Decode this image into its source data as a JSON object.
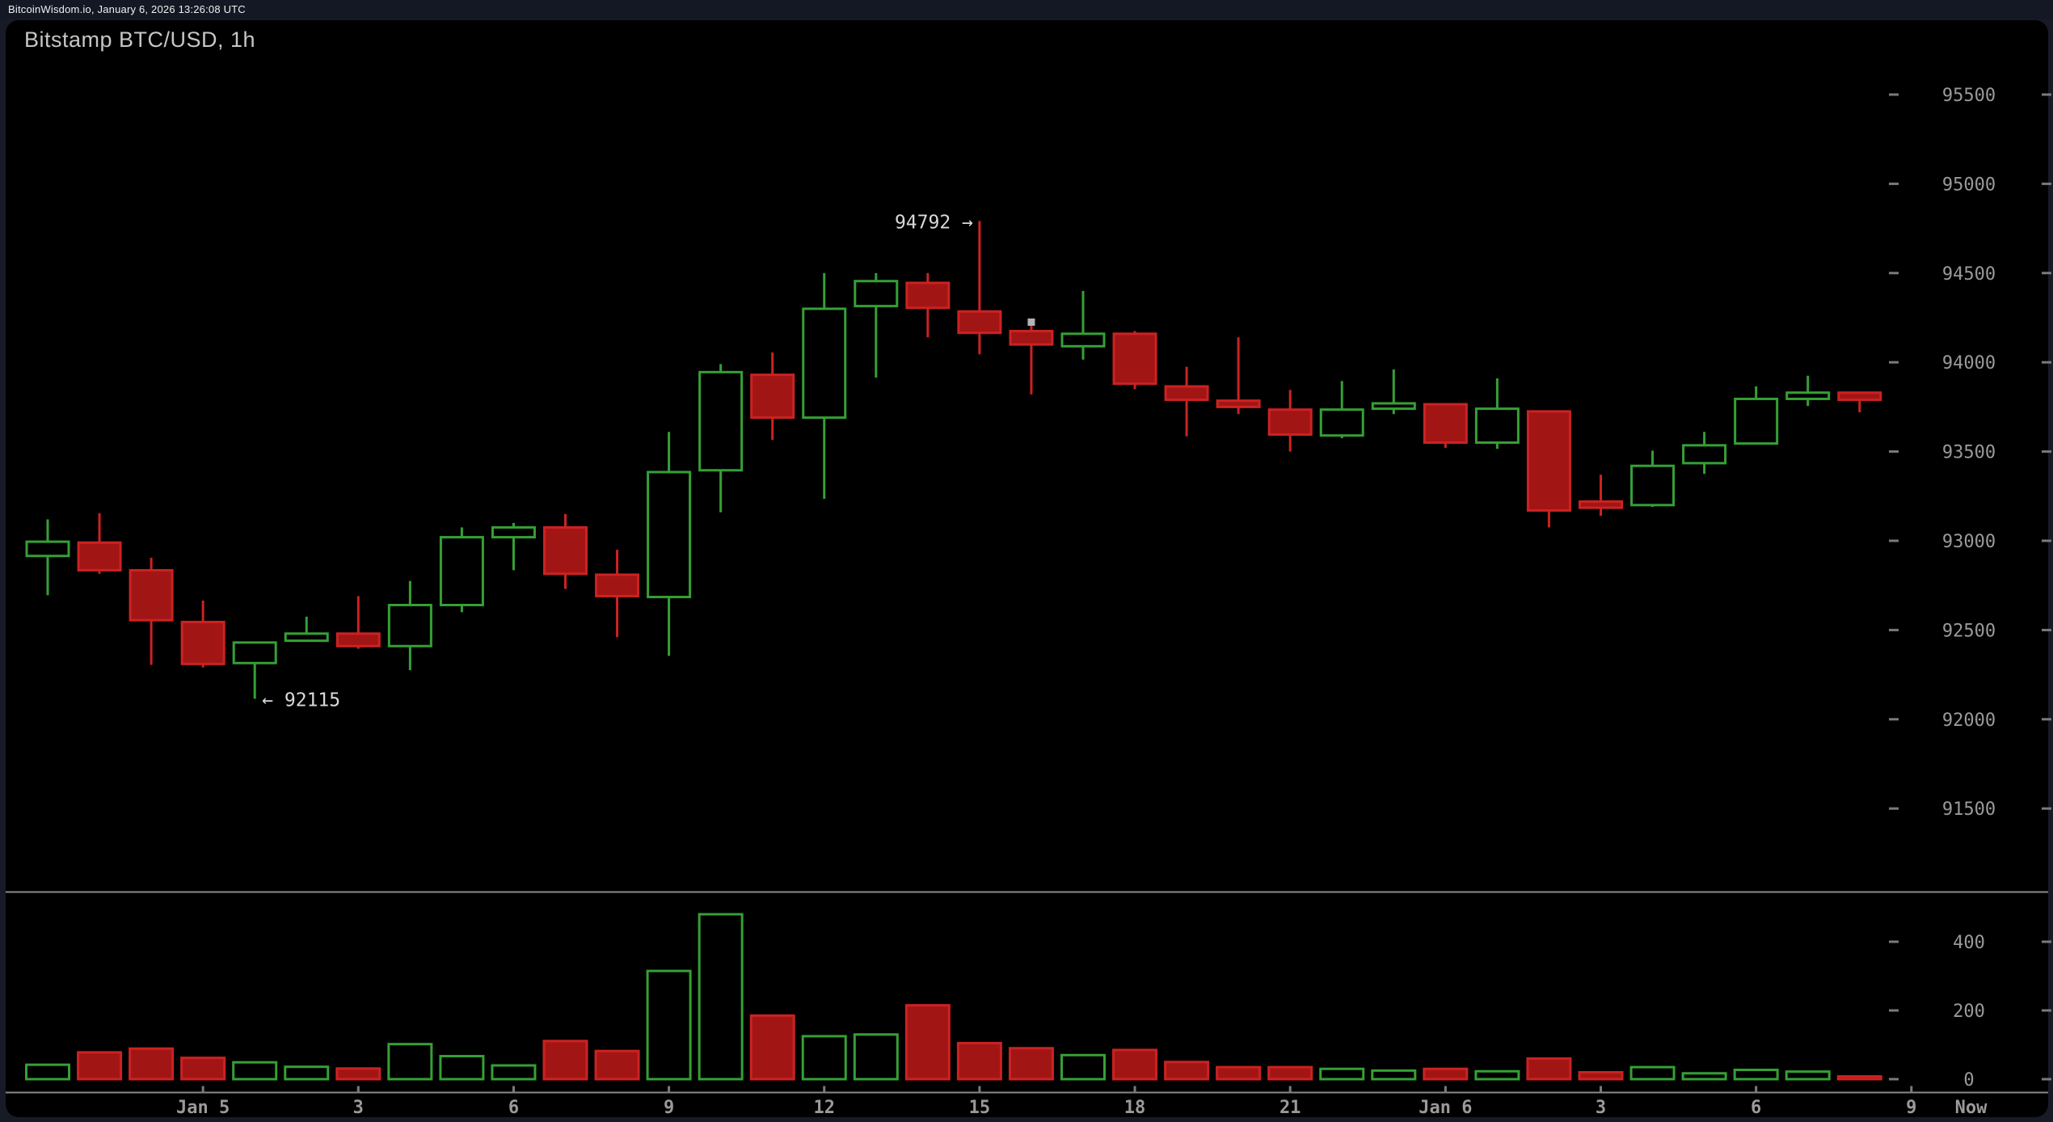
{
  "header": {
    "text": "BitcoinWisdom.io, January 6, 2026 13:26:08 UTC"
  },
  "chart": {
    "title": "Bitstamp BTC/USD, 1h"
  },
  "colors": {
    "up": "#35a035",
    "down_fill": "#a21515",
    "down_stroke": "#cc2222",
    "axis_text": "#9a9a9a",
    "axis_line": "#8a8a8a",
    "tick_dash": "#7a7a7a",
    "annotation_text": "#d9d9d9",
    "marker": "#b3b3b3",
    "page_bg": "#171b26",
    "panel_bg": "#000000",
    "topbar_bg": "#141824",
    "title_text": "#c6c6c6"
  },
  "chart_data": {
    "type": "candlestick",
    "exchange_pair_interval": "Bitstamp BTC/USD, 1h",
    "legend_position": "none",
    "grid": "off",
    "price_axis": {
      "ticks": [
        95500,
        95000,
        94500,
        94000,
        93500,
        93000,
        92500,
        92000,
        91500
      ]
    },
    "volume_axis": {
      "ticks": [
        400,
        200,
        0
      ]
    },
    "time_axis": {
      "labels": [
        {
          "text": "Jan 5",
          "index": 3,
          "tick": true
        },
        {
          "text": "3",
          "index": 6,
          "tick": true
        },
        {
          "text": "6",
          "index": 9,
          "tick": true
        },
        {
          "text": "9",
          "index": 12,
          "tick": true
        },
        {
          "text": "12",
          "index": 15,
          "tick": true
        },
        {
          "text": "15",
          "index": 18,
          "tick": true
        },
        {
          "text": "18",
          "index": 21,
          "tick": true
        },
        {
          "text": "21",
          "index": 24,
          "tick": true
        },
        {
          "text": "Jan 6",
          "index": 27,
          "tick": true
        },
        {
          "text": "3",
          "index": 30,
          "tick": true
        },
        {
          "text": "6",
          "index": 33,
          "tick": true
        },
        {
          "text": "9",
          "index": 36,
          "tick": true
        },
        {
          "text": "Now",
          "index": 37.15,
          "tick": false
        }
      ]
    },
    "candles": [
      {
        "time": "Jan 4 21:00",
        "open": 92915,
        "high": 93120,
        "low": 92695,
        "close": 92995,
        "volume": 42
      },
      {
        "time": "Jan 4 22:00",
        "open": 92990,
        "high": 93155,
        "low": 92815,
        "close": 92835,
        "volume": 78
      },
      {
        "time": "Jan 4 23:00",
        "open": 92835,
        "high": 92905,
        "low": 92305,
        "close": 92555,
        "volume": 89
      },
      {
        "time": "Jan 5 00:00",
        "open": 92545,
        "high": 92665,
        "low": 92290,
        "close": 92310,
        "volume": 62
      },
      {
        "time": "Jan 5 01:00",
        "open": 92315,
        "high": 92430,
        "low": 92115,
        "close": 92430,
        "volume": 49
      },
      {
        "time": "Jan 5 02:00",
        "open": 92440,
        "high": 92575,
        "low": 92440,
        "close": 92480,
        "volume": 36
      },
      {
        "time": "Jan 5 03:00",
        "open": 92480,
        "high": 92690,
        "low": 92395,
        "close": 92410,
        "volume": 31
      },
      {
        "time": "Jan 5 04:00",
        "open": 92410,
        "high": 92775,
        "low": 92275,
        "close": 92640,
        "volume": 102
      },
      {
        "time": "Jan 5 05:00",
        "open": 92640,
        "high": 93075,
        "low": 92600,
        "close": 93020,
        "volume": 67
      },
      {
        "time": "Jan 5 06:00",
        "open": 93020,
        "high": 93100,
        "low": 92835,
        "close": 93075,
        "volume": 40
      },
      {
        "time": "Jan 5 07:00",
        "open": 93075,
        "high": 93150,
        "low": 92730,
        "close": 92815,
        "volume": 111
      },
      {
        "time": "Jan 5 08:00",
        "open": 92810,
        "high": 92950,
        "low": 92460,
        "close": 92690,
        "volume": 82
      },
      {
        "time": "Jan 5 09:00",
        "open": 92685,
        "high": 93610,
        "low": 92355,
        "close": 93385,
        "volume": 315
      },
      {
        "time": "Jan 5 10:00",
        "open": 93395,
        "high": 93990,
        "low": 93160,
        "close": 93945,
        "volume": 480
      },
      {
        "time": "Jan 5 11:00",
        "open": 93930,
        "high": 94055,
        "low": 93565,
        "close": 93690,
        "volume": 185
      },
      {
        "time": "Jan 5 12:00",
        "open": 93690,
        "high": 94500,
        "low": 93235,
        "close": 94300,
        "volume": 125
      },
      {
        "time": "Jan 5 13:00",
        "open": 94315,
        "high": 94500,
        "low": 93915,
        "close": 94455,
        "volume": 130
      },
      {
        "time": "Jan 5 14:00",
        "open": 94445,
        "high": 94500,
        "low": 94140,
        "close": 94305,
        "volume": 215
      },
      {
        "time": "Jan 5 15:00",
        "open": 94285,
        "high": 94792,
        "low": 94045,
        "close": 94165,
        "volume": 105
      },
      {
        "time": "Jan 5 16:00",
        "open": 94175,
        "high": 94225,
        "low": 93820,
        "close": 94100,
        "volume": 90
      },
      {
        "time": "Jan 5 17:00",
        "open": 94090,
        "high": 94400,
        "low": 94015,
        "close": 94160,
        "volume": 70
      },
      {
        "time": "Jan 5 18:00",
        "open": 94160,
        "high": 94175,
        "low": 93850,
        "close": 93880,
        "volume": 85
      },
      {
        "time": "Jan 5 19:00",
        "open": 93865,
        "high": 93975,
        "low": 93585,
        "close": 93790,
        "volume": 50
      },
      {
        "time": "Jan 5 20:00",
        "open": 93785,
        "high": 94140,
        "low": 93710,
        "close": 93750,
        "volume": 35
      },
      {
        "time": "Jan 5 21:00",
        "open": 93735,
        "high": 93845,
        "low": 93500,
        "close": 93595,
        "volume": 35
      },
      {
        "time": "Jan 5 22:00",
        "open": 93590,
        "high": 93895,
        "low": 93575,
        "close": 93735,
        "volume": 30
      },
      {
        "time": "Jan 5 23:00",
        "open": 93740,
        "high": 93960,
        "low": 93710,
        "close": 93770,
        "volume": 25
      },
      {
        "time": "Jan 6 00:00",
        "open": 93765,
        "high": 93770,
        "low": 93520,
        "close": 93550,
        "volume": 30
      },
      {
        "time": "Jan 6 01:00",
        "open": 93550,
        "high": 93910,
        "low": 93515,
        "close": 93740,
        "volume": 23
      },
      {
        "time": "Jan 6 02:00",
        "open": 93725,
        "high": 93725,
        "low": 93075,
        "close": 93170,
        "volume": 60
      },
      {
        "time": "Jan 6 03:00",
        "open": 93220,
        "high": 93370,
        "low": 93140,
        "close": 93185,
        "volume": 20
      },
      {
        "time": "Jan 6 04:00",
        "open": 93200,
        "high": 93505,
        "low": 93190,
        "close": 93420,
        "volume": 35
      },
      {
        "time": "Jan 6 05:00",
        "open": 93435,
        "high": 93610,
        "low": 93375,
        "close": 93535,
        "volume": 17
      },
      {
        "time": "Jan 6 06:00",
        "open": 93545,
        "high": 93865,
        "low": 93545,
        "close": 93795,
        "volume": 27
      },
      {
        "time": "Jan 6 07:00",
        "open": 93795,
        "high": 93925,
        "low": 93755,
        "close": 93830,
        "volume": 22
      },
      {
        "time": "Jan 6 08:00",
        "open": 93830,
        "high": 93830,
        "low": 93720,
        "close": 93790,
        "volume": 8
      }
    ],
    "annotations": [
      {
        "text": "94792 →",
        "candle": 18,
        "attach": "high",
        "side": "left"
      },
      {
        "text": "← 92115",
        "candle": 4,
        "attach": "low",
        "side": "right"
      }
    ],
    "markers": [
      {
        "candle": 19,
        "price": 94225,
        "shape": "square"
      }
    ]
  }
}
